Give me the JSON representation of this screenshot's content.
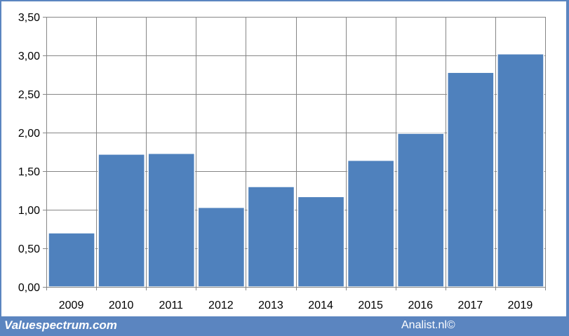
{
  "chart_data": {
    "type": "bar",
    "categories": [
      "2009",
      "2010",
      "2011",
      "2012",
      "2013",
      "2014",
      "2015",
      "2016",
      "2017",
      "2019"
    ],
    "values": [
      0.7,
      1.72,
      1.73,
      1.03,
      1.3,
      1.17,
      1.64,
      1.99,
      2.78,
      3.02
    ],
    "yticks": [
      "0,00",
      "0,50",
      "1,00",
      "1,50",
      "2,00",
      "2,50",
      "3,00",
      "3,50"
    ],
    "ylim": [
      0,
      3.5
    ],
    "title": "",
    "xlabel": "",
    "ylabel": "",
    "grid": "vertical and horizontal",
    "bar_color": "#4f81bd"
  },
  "footer": {
    "brand": "Valuespectrum.com",
    "copyright": "Analist.nl©"
  },
  "colors": {
    "background": "#5b85c0",
    "bar": "#4f81bd",
    "grid": "#868686"
  }
}
